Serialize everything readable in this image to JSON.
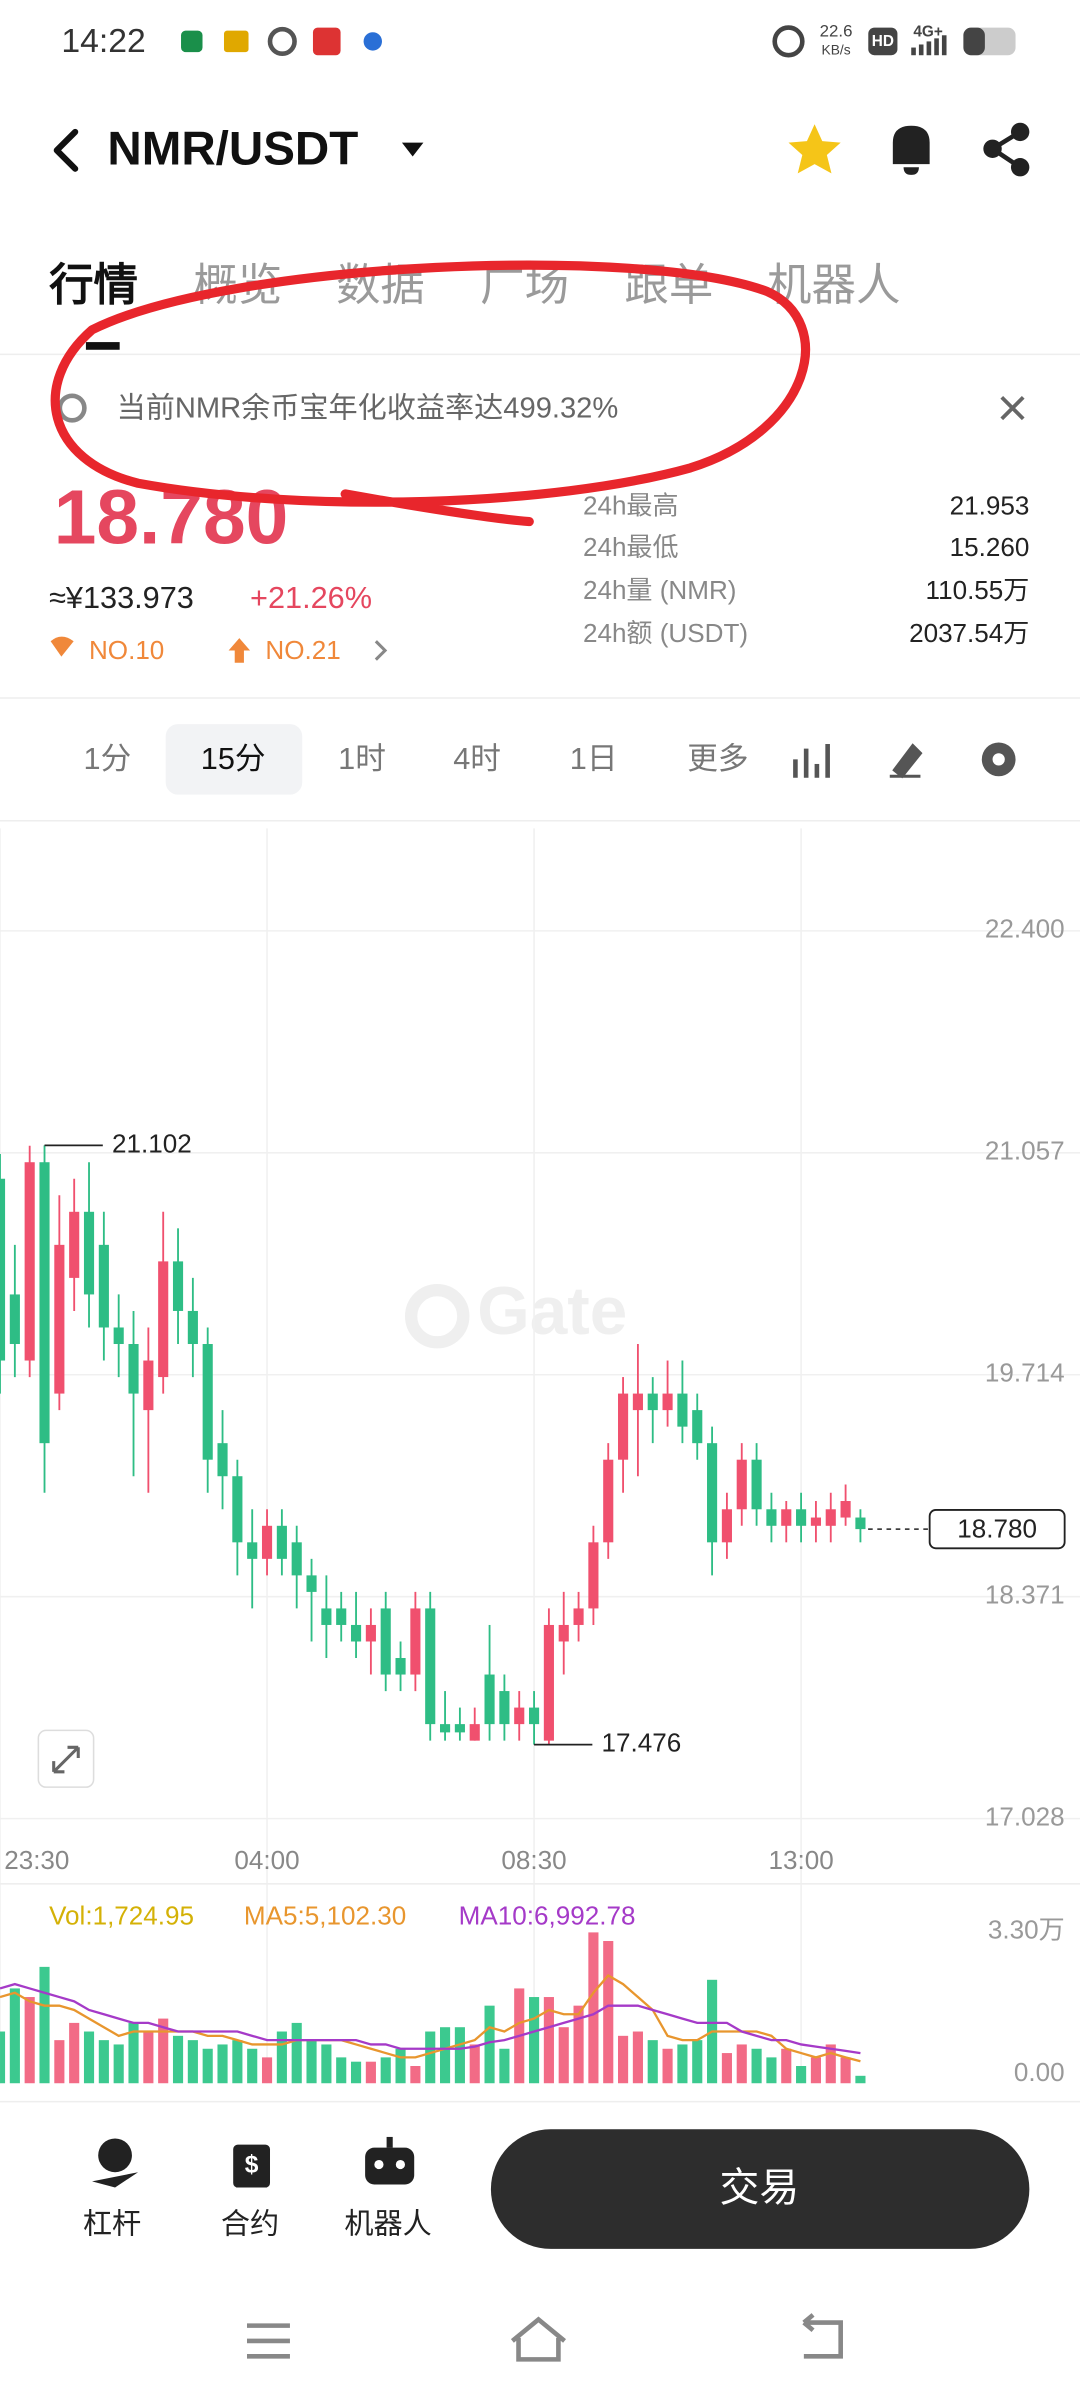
{
  "status_bar": {
    "time": "14:22",
    "speed_value": "22.6",
    "speed_unit": "KB/s",
    "hd": "HD",
    "network": "4G+"
  },
  "header": {
    "pair": "NMR/USDT"
  },
  "tabs": [
    "行情",
    "概览",
    "数据",
    "广场",
    "跟单",
    "机器人"
  ],
  "banner": {
    "text": "当前NMR余币宝年化收益率达499.32%"
  },
  "price": {
    "last": "18.780",
    "cny": "≈¥133.973",
    "change": "+21.26%",
    "rank_hot": "NO.10",
    "rank_gain": "NO.21"
  },
  "stats": [
    {
      "label": "24h最高",
      "value": "21.953"
    },
    {
      "label": "24h最低",
      "value": "15.260"
    },
    {
      "label": "24h量 (NMR)",
      "value": "110.55万"
    },
    {
      "label": "24h额 (USDT)",
      "value": "2037.54万"
    }
  ],
  "intervals": [
    "1分",
    "15分",
    "1时",
    "4时",
    "1日",
    "更多"
  ],
  "chart_data": [
    {
      "type": "candlestick",
      "watermark": "Gate",
      "up_color": "#f0506e",
      "down_color": "#2ebd85",
      "open": [
        20.9,
        20.2,
        19.8,
        21.0,
        19.6,
        20.3,
        20.7,
        20.5,
        20.0,
        19.9,
        19.5,
        19.7,
        20.4,
        20.1,
        19.9,
        19.3,
        19.1,
        18.7,
        18.6,
        18.8,
        18.7,
        18.5,
        18.3,
        18.3,
        18.2,
        18.1,
        18.3,
        18.0,
        17.9,
        18.3,
        17.6,
        17.6,
        17.5,
        17.9,
        17.8,
        17.6,
        17.7,
        17.5,
        18.1,
        18.2,
        18.3,
        18.7,
        19.2,
        19.5,
        19.6,
        19.5,
        19.6,
        19.5,
        19.3,
        18.7,
        18.9,
        19.2,
        18.9,
        18.8,
        18.9,
        18.8,
        18.8,
        18.85,
        18.85
      ],
      "high": [
        21.05,
        20.5,
        21.1,
        21.102,
        20.8,
        20.9,
        21.0,
        20.7,
        20.2,
        20.1,
        20.0,
        20.7,
        20.6,
        20.3,
        20.0,
        19.5,
        19.2,
        18.9,
        18.9,
        18.9,
        18.8,
        18.6,
        18.5,
        18.4,
        18.4,
        18.3,
        18.4,
        18.1,
        18.4,
        18.4,
        17.8,
        17.7,
        17.7,
        18.2,
        17.9,
        17.8,
        17.8,
        18.3,
        18.4,
        18.4,
        18.8,
        19.3,
        19.7,
        19.9,
        19.7,
        19.8,
        19.8,
        19.6,
        19.4,
        19.0,
        19.3,
        19.3,
        19.0,
        18.95,
        19.0,
        18.95,
        19.0,
        19.05,
        18.9
      ],
      "low": [
        19.6,
        19.7,
        19.7,
        19.0,
        19.5,
        20.1,
        20.0,
        19.8,
        19.7,
        19.1,
        19.0,
        19.6,
        19.9,
        19.7,
        19.0,
        18.9,
        18.5,
        18.3,
        18.5,
        18.5,
        18.3,
        18.1,
        18.0,
        18.1,
        18.0,
        17.9,
        17.8,
        17.8,
        17.8,
        17.5,
        17.5,
        17.5,
        17.5,
        17.5,
        17.5,
        17.5,
        17.476,
        17.476,
        17.9,
        18.1,
        18.2,
        18.6,
        19.0,
        19.1,
        19.3,
        19.4,
        19.3,
        19.2,
        18.5,
        18.6,
        18.8,
        18.8,
        18.7,
        18.7,
        18.7,
        18.7,
        18.7,
        18.8,
        18.7
      ],
      "close": [
        19.8,
        19.9,
        21.0,
        19.3,
        20.5,
        20.7,
        20.2,
        20.0,
        19.9,
        19.6,
        19.8,
        20.4,
        20.1,
        19.9,
        19.2,
        19.1,
        18.7,
        18.6,
        18.8,
        18.6,
        18.5,
        18.4,
        18.2,
        18.2,
        18.1,
        18.2,
        17.9,
        17.9,
        18.3,
        17.6,
        17.55,
        17.55,
        17.6,
        17.6,
        17.6,
        17.7,
        17.6,
        18.2,
        18.2,
        18.3,
        18.7,
        19.2,
        19.6,
        19.6,
        19.5,
        19.6,
        19.4,
        19.3,
        18.7,
        18.9,
        19.2,
        18.9,
        18.8,
        18.9,
        18.8,
        18.85,
        18.9,
        18.95,
        18.78
      ],
      "xlim": [
        0,
        72.8
      ],
      "xticks": [
        {
          "value": 0,
          "label": "23:30"
        },
        {
          "value": 18,
          "label": "04:00"
        },
        {
          "value": 36,
          "label": "08:30"
        },
        {
          "value": 54,
          "label": "13:00"
        }
      ],
      "ylim": [
        16.94,
        23.02
      ],
      "yticks": [
        {
          "value": 17.028,
          "label": "17.028"
        },
        {
          "value": 18.371,
          "label": "18.371"
        },
        {
          "value": 19.714,
          "label": "19.714"
        },
        {
          "value": 21.057,
          "label": "21.057"
        },
        {
          "value": 22.4,
          "label": "22.400"
        }
      ],
      "grid": true,
      "last_price": {
        "value": 18.78,
        "label": "18.780"
      },
      "high_marker": 21.102,
      "low_marker": 17.476
    },
    {
      "type": "bar",
      "name": "Vol",
      "legend_sep": ":",
      "legend_value": "1,724.95",
      "color": "#d4b106",
      "values": [
        12000,
        22000,
        20000,
        27000,
        10000,
        14000,
        12000,
        10000,
        9000,
        14000,
        12000,
        15000,
        11000,
        10000,
        8000,
        9000,
        10000,
        8000,
        6000,
        12000,
        14000,
        10000,
        9000,
        6000,
        5000,
        5000,
        6000,
        8000,
        4000,
        12000,
        13000,
        13000,
        9000,
        18000,
        8000,
        22000,
        20000,
        20000,
        13000,
        18000,
        35000,
        33000,
        11000,
        12000,
        10000,
        8000,
        9000,
        10000,
        24000,
        7000,
        9000,
        8000,
        6000,
        8000,
        4000,
        6000,
        9000,
        6000,
        1724.95
      ],
      "ylim": [
        0,
        42000
      ],
      "yticks": [
        {
          "value": 0,
          "label": "0.00"
        },
        {
          "value": 33000,
          "label": "3.30万"
        }
      ],
      "series": [
        {
          "name": "MA5",
          "color": "#e8962e",
          "legend_value": "5,102.30",
          "values": [
            20000,
            21000,
            19000,
            18000,
            18000,
            17000,
            15000,
            13000,
            11000,
            12000,
            12000,
            12000,
            12000,
            12000,
            11000,
            11000,
            10000,
            9000,
            9000,
            9000,
            10000,
            10000,
            10000,
            10000,
            9000,
            8000,
            7000,
            6000,
            6000,
            7000,
            8000,
            9000,
            10000,
            13000,
            12000,
            14000,
            15000,
            17000,
            16000,
            16000,
            21000,
            25000,
            23000,
            20000,
            17000,
            11000,
            10000,
            10000,
            12000,
            12000,
            12000,
            12000,
            11000,
            8000,
            7000,
            6000,
            7000,
            6000,
            5102.3
          ]
        },
        {
          "name": "MA10",
          "color": "#a53ac8",
          "legend_value": "6,992.78",
          "values": [
            22000,
            23000,
            22000,
            21000,
            20000,
            19000,
            17000,
            16000,
            15000,
            14000,
            14000,
            13000,
            12000,
            12000,
            12000,
            12000,
            12000,
            11000,
            10000,
            10000,
            10000,
            10000,
            10000,
            10000,
            10000,
            9000,
            9000,
            8000,
            8000,
            8000,
            8000,
            8000,
            8500,
            9500,
            10000,
            11000,
            12000,
            13000,
            14000,
            15000,
            16000,
            18000,
            18000,
            18000,
            17000,
            16000,
            15000,
            14000,
            14000,
            14000,
            12000,
            11000,
            10000,
            10000,
            9000,
            8500,
            8000,
            7500,
            6992.78
          ]
        }
      ]
    }
  ],
  "bottom_bar": {
    "items": [
      "杠杆",
      "合约",
      "机器人"
    ],
    "trade": "交易"
  }
}
